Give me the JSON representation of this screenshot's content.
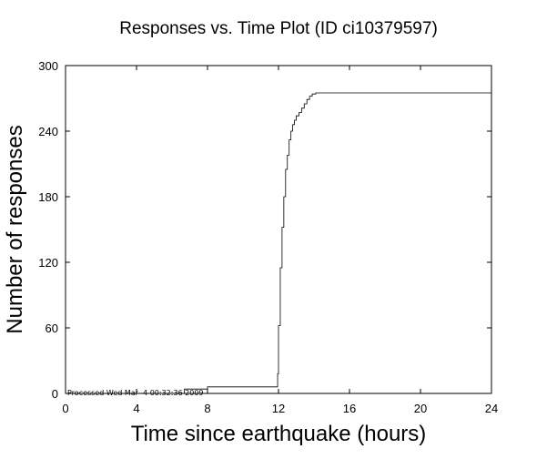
{
  "chart_data": {
    "type": "line",
    "title": "Responses vs. Time Plot (ID ci10379597)",
    "xlabel": "Time since earthquake (hours)",
    "ylabel": "Number of responses",
    "xlim": [
      0,
      24
    ],
    "ylim": [
      0,
      300
    ],
    "xticks": [
      0,
      4,
      8,
      12,
      16,
      20,
      24
    ],
    "yticks": [
      0,
      60,
      120,
      180,
      240,
      300
    ],
    "grid": false,
    "annotation": "Processed Wed Mar  4 00:32:36 2009",
    "series": [
      {
        "step": true,
        "x": [
          0,
          6.7,
          8.0,
          11.9,
          11.95,
          12.0,
          12.1,
          12.2,
          12.3,
          12.4,
          12.5,
          12.6,
          12.7,
          12.8,
          12.9,
          13.0,
          13.15,
          13.3,
          13.45,
          13.6,
          13.75,
          13.9,
          14.1,
          24.0
        ],
        "y": [
          0,
          4,
          6,
          6,
          18,
          62,
          115,
          152,
          180,
          205,
          218,
          232,
          240,
          246,
          250,
          254,
          257,
          261,
          265,
          269,
          272,
          274,
          275,
          275
        ]
      }
    ]
  }
}
